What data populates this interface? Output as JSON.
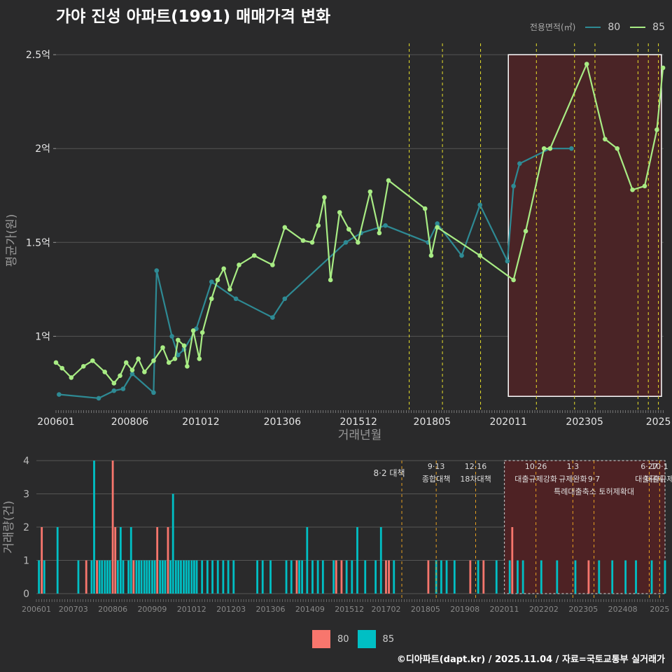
{
  "title": "가야 진성 아파트(1991) 매매가격 변화",
  "legend_top": {
    "title": "전용면적(㎡)",
    "items": [
      {
        "label": "80",
        "color": "#2e8a94"
      },
      {
        "label": "85",
        "color": "#a8ec84"
      }
    ]
  },
  "legend_bottom": {
    "items": [
      {
        "label": "80",
        "color": "#f8766d"
      },
      {
        "label": "85",
        "color": "#00bfc4"
      }
    ]
  },
  "footer": "©디아파트(dapt.kr) / 2025.11.04 / 자료=국토교통부 실거래가",
  "chart_data": [
    {
      "type": "line",
      "ylabel": "평균가(원)",
      "xlabel": "거래년월",
      "x_domain": [
        2006.0,
        2025.92
      ],
      "ylim": [
        0.61,
        2.56
      ],
      "yticks": [
        {
          "v": 1.0,
          "label": "1억"
        },
        {
          "v": 1.5,
          "label": "1.5억"
        },
        {
          "v": 2.0,
          "label": "2억"
        },
        {
          "v": 2.5,
          "label": "2.5억"
        }
      ],
      "xticks": [
        {
          "v": 2006.0,
          "label": "200601"
        },
        {
          "v": 2008.42,
          "label": "200806"
        },
        {
          "v": 2010.75,
          "label": "201012"
        },
        {
          "v": 2013.42,
          "label": "201306"
        },
        {
          "v": 2015.92,
          "label": "201512"
        },
        {
          "v": 2018.33,
          "label": "201805"
        },
        {
          "v": 2020.83,
          "label": "202011"
        },
        {
          "v": 2023.33,
          "label": "202305"
        },
        {
          "v": 2025.75,
          "label": "2025"
        }
      ],
      "highlight": {
        "x0": 2020.83,
        "x1": 2025.85,
        "y0": 0.68,
        "y1": 2.5
      },
      "vlines": [
        2017.58,
        2018.67,
        2019.92,
        2021.75,
        2023.0,
        2023.67,
        2025.08,
        2025.42,
        2025.75
      ],
      "series": [
        {
          "name": "80",
          "color": "#2e8a94",
          "x": [
            2006.1,
            2007.4,
            2007.9,
            2008.2,
            2008.5,
            2009.2,
            2009.3,
            2009.8,
            2010.0,
            2010.2,
            2010.6,
            2011.1,
            2011.9,
            2013.1,
            2013.5,
            2015.5,
            2016.0,
            2016.8,
            2018.2,
            2018.5,
            2019.3,
            2019.9,
            2020.8,
            2021.0,
            2021.2,
            2022.2,
            2022.9
          ],
          "y": [
            0.69,
            0.67,
            0.71,
            0.72,
            0.8,
            0.7,
            1.35,
            1.0,
            0.9,
            0.93,
            1.04,
            1.29,
            1.2,
            1.1,
            1.2,
            1.5,
            1.55,
            1.59,
            1.5,
            1.6,
            1.43,
            1.7,
            1.4,
            1.8,
            1.92,
            2.0,
            2.0
          ]
        },
        {
          "name": "85",
          "color": "#a8ec84",
          "x": [
            2006.0,
            2006.2,
            2006.5,
            2006.9,
            2007.2,
            2007.6,
            2007.9,
            2008.1,
            2008.3,
            2008.5,
            2008.7,
            2008.9,
            2009.2,
            2009.5,
            2009.7,
            2009.9,
            2010.0,
            2010.2,
            2010.3,
            2010.5,
            2010.7,
            2010.8,
            2011.1,
            2011.3,
            2011.5,
            2011.7,
            2012.0,
            2012.5,
            2013.1,
            2013.5,
            2014.1,
            2014.4,
            2014.6,
            2014.8,
            2015.0,
            2015.3,
            2015.6,
            2015.9,
            2016.3,
            2016.6,
            2016.9,
            2018.1,
            2018.3,
            2018.5,
            2019.9,
            2021.0,
            2021.4,
            2022.0,
            2022.2,
            2023.4,
            2024.0,
            2024.4,
            2024.9,
            2025.3,
            2025.7,
            2025.9
          ],
          "y": [
            0.86,
            0.83,
            0.78,
            0.84,
            0.87,
            0.81,
            0.75,
            0.79,
            0.86,
            0.82,
            0.88,
            0.81,
            0.87,
            0.94,
            0.86,
            0.88,
            0.98,
            0.95,
            0.84,
            1.03,
            0.88,
            1.02,
            1.2,
            1.3,
            1.36,
            1.25,
            1.38,
            1.43,
            1.38,
            1.58,
            1.51,
            1.5,
            1.59,
            1.74,
            1.3,
            1.66,
            1.57,
            1.5,
            1.77,
            1.55,
            1.83,
            1.68,
            1.43,
            1.58,
            1.43,
            1.3,
            1.56,
            2.0,
            2.0,
            2.45,
            2.05,
            2.0,
            1.78,
            1.8,
            2.1,
            2.43
          ]
        }
      ]
    },
    {
      "type": "bar",
      "ylabel": "거래량(건)",
      "x_domain": [
        2006.0,
        2025.92
      ],
      "ylim": [
        0,
        4
      ],
      "yticks": [
        0,
        1,
        2,
        3,
        4
      ],
      "xticks": [
        {
          "v": 2006.0,
          "label": "200601"
        },
        {
          "v": 2007.17,
          "label": "200703"
        },
        {
          "v": 2008.42,
          "label": "200806"
        },
        {
          "v": 2009.67,
          "label": "200909"
        },
        {
          "v": 2010.92,
          "label": "201012"
        },
        {
          "v": 2012.17,
          "label": "201203"
        },
        {
          "v": 2013.42,
          "label": "201306"
        },
        {
          "v": 2014.67,
          "label": "201409"
        },
        {
          "v": 2015.92,
          "label": "201512"
        },
        {
          "v": 2017.08,
          "label": "201702"
        },
        {
          "v": 2018.33,
          "label": "201805"
        },
        {
          "v": 2019.58,
          "label": "201908"
        },
        {
          "v": 2020.83,
          "label": "202011"
        },
        {
          "v": 2022.08,
          "label": "202202"
        },
        {
          "v": 2023.33,
          "label": "202305"
        },
        {
          "v": 2024.58,
          "label": "202408"
        },
        {
          "v": 2025.75,
          "label": "2025"
        }
      ],
      "highlight": {
        "x0": 2020.83,
        "x1": 2025.92
      },
      "annotations": [
        {
          "x": 2017.58,
          "line1": "8·2 대책",
          "line2": ""
        },
        {
          "x": 2018.67,
          "line1": "9·13",
          "line2": "종합대책"
        },
        {
          "x": 2019.92,
          "line1": "12·16",
          "line2": "18차대책"
        },
        {
          "x": 2021.83,
          "line1": "10·26",
          "line2": "대출규제강화"
        },
        {
          "x": 2023.0,
          "line1": "1·3",
          "line2": "규제완화"
        },
        {
          "x": 2023.67,
          "line1": "9·7",
          "line2": "특례대출축소 토허제확대"
        },
        {
          "x": 2025.42,
          "line1": "6·27",
          "line2": "대출규제"
        },
        {
          "x": 2025.75,
          "line1": "10·1",
          "line2": "대출규제"
        }
      ],
      "series": [
        {
          "name": "80",
          "color": "#f8766d",
          "x": [
            2006.17,
            2007.58,
            2007.92,
            2008.42,
            2008.5,
            2009.08,
            2009.83,
            2010.17,
            2014.25,
            2015.5,
            2015.67,
            2017.08,
            2017.17,
            2018.42,
            2019.75,
            2020.17,
            2021.08,
            2023.5
          ],
          "y": [
            2,
            1,
            1,
            4,
            2,
            1,
            2,
            2,
            1,
            1,
            1,
            1,
            1,
            1,
            1,
            1,
            2,
            1
          ]
        },
        {
          "name": "85",
          "color": "#00bfc4",
          "x": [
            2006.08,
            2006.25,
            2006.67,
            2007.33,
            2007.75,
            2007.83,
            2008.0,
            2008.08,
            2008.17,
            2008.25,
            2008.33,
            2008.58,
            2008.67,
            2008.75,
            2008.92,
            2009.0,
            2009.17,
            2009.25,
            2009.33,
            2009.42,
            2009.5,
            2009.58,
            2009.67,
            2009.75,
            2009.92,
            2010.0,
            2010.08,
            2010.25,
            2010.33,
            2010.42,
            2010.5,
            2010.58,
            2010.67,
            2010.75,
            2010.83,
            2010.92,
            2011.0,
            2011.08,
            2011.25,
            2011.42,
            2011.58,
            2011.75,
            2011.92,
            2012.08,
            2012.25,
            2013.0,
            2013.17,
            2013.42,
            2013.92,
            2014.08,
            2014.33,
            2014.42,
            2014.58,
            2014.75,
            2014.92,
            2015.08,
            2015.42,
            2015.83,
            2016.0,
            2016.17,
            2016.42,
            2016.75,
            2016.92,
            2017.33,
            2018.67,
            2018.83,
            2019.0,
            2019.25,
            2020.0,
            2020.58,
            2021.0,
            2021.25,
            2021.42,
            2022.0,
            2022.5,
            2023.08,
            2023.83,
            2024.25,
            2024.67,
            2025.0,
            2025.5,
            2025.92
          ],
          "y": [
            1,
            1,
            2,
            1,
            1,
            4,
            1,
            1,
            1,
            1,
            1,
            1,
            2,
            1,
            1,
            2,
            1,
            1,
            1,
            1,
            1,
            1,
            1,
            1,
            1,
            1,
            1,
            1,
            3,
            1,
            1,
            1,
            1,
            1,
            1,
            1,
            1,
            1,
            1,
            1,
            1,
            1,
            1,
            1,
            1,
            1,
            1,
            1,
            1,
            1,
            1,
            1,
            2,
            1,
            1,
            1,
            1,
            1,
            1,
            2,
            1,
            1,
            2,
            1,
            1,
            1,
            1,
            1,
            1,
            1,
            1,
            1,
            1,
            1,
            1,
            1,
            1,
            1,
            1,
            1,
            1,
            1
          ]
        }
      ]
    }
  ]
}
